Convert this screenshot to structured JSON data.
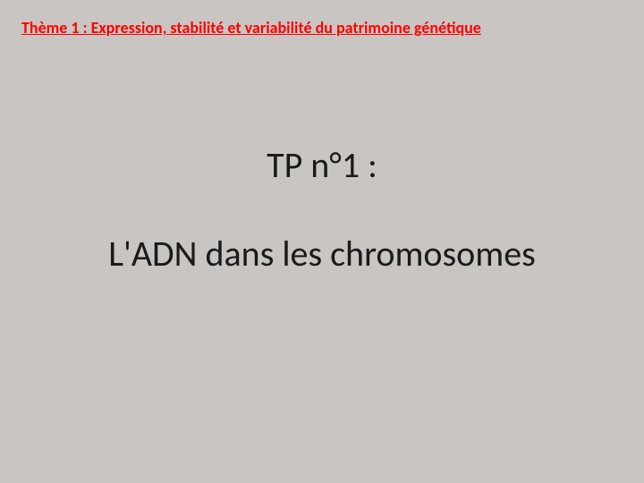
{
  "slide": {
    "background_color": "#c9c5c2",
    "theme_header": {
      "text": "Thème 1 : Expression, stabilité et variabilité du patrimoine génétique",
      "color": "#ff0000",
      "fontsize": 18
    },
    "tp_number": {
      "text": "TP n°1 :",
      "color": "#1a1a1a",
      "fontsize": 40
    },
    "subtitle": {
      "text": "L'ADN dans les chromosomes",
      "color": "#1a1a1a",
      "fontsize": 40
    }
  }
}
